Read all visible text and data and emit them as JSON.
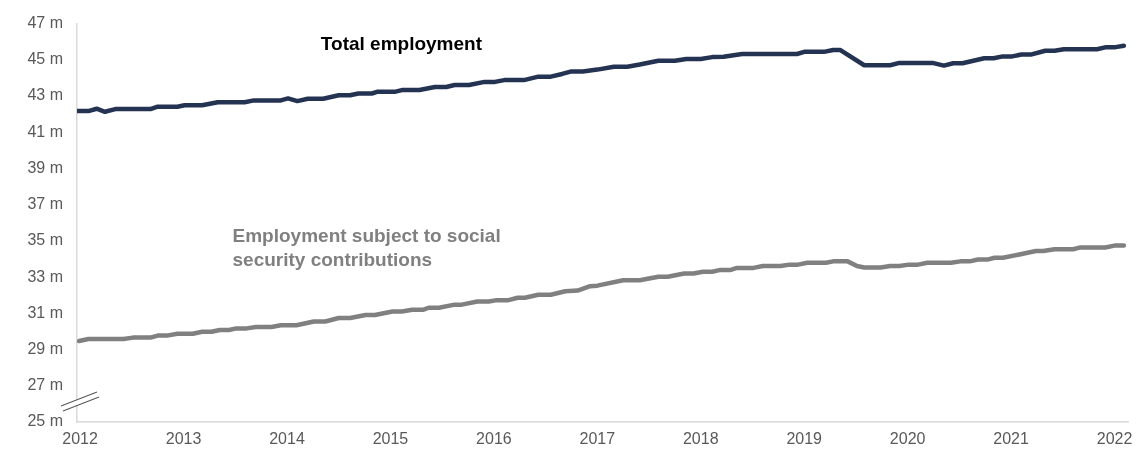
{
  "chart_data": {
    "type": "line",
    "legend": false,
    "grid": false,
    "marker": "none",
    "line_style": "solid",
    "xlim": [
      2011.97,
      2022.13
    ],
    "xticks": [
      2012,
      2013,
      2014,
      2015,
      2016,
      2017,
      2018,
      2019,
      2020,
      2021,
      2022
    ],
    "ylim": [
      25,
      47
    ],
    "yticks": [
      {
        "value": 25,
        "label": "25 m"
      },
      {
        "value": 27,
        "label": "27 m"
      },
      {
        "value": 29,
        "label": "29 m"
      },
      {
        "value": 31,
        "label": "31 m"
      },
      {
        "value": 33,
        "label": "33 m"
      },
      {
        "value": 35,
        "label": "35 m"
      },
      {
        "value": 37,
        "label": "37 m"
      },
      {
        "value": 39,
        "label": "39 m"
      },
      {
        "value": 41,
        "label": "41 m"
      },
      {
        "value": 43,
        "label": "43 m"
      },
      {
        "value": 45,
        "label": "45 m"
      },
      {
        "value": 47,
        "label": "47 m"
      }
    ],
    "series": [
      {
        "name": "Total employment",
        "color": "#253353",
        "x": [
          2011.97,
          2012.08,
          2012.16,
          2012.24,
          2012.34,
          2012.68,
          2012.75,
          2012.94,
          2013.01,
          2013.18,
          2013.33,
          2013.59,
          2013.68,
          2013.94,
          2014.01,
          2014.1,
          2014.2,
          2014.35,
          2014.5,
          2014.61,
          2014.69,
          2014.82,
          2014.87,
          2015.04,
          2015.11,
          2015.28,
          2015.43,
          2015.54,
          2015.62,
          2015.76,
          2015.91,
          2016.01,
          2016.1,
          2016.29,
          2016.43,
          2016.55,
          2016.66,
          2016.75,
          2016.86,
          2017,
          2017.16,
          2017.29,
          2017.41,
          2017.59,
          2017.75,
          2017.86,
          2018,
          2018.11,
          2018.22,
          2018.4,
          2018.5,
          2018.93,
          2019,
          2019.19,
          2019.28,
          2019.35,
          2019.58,
          2019.83,
          2019.92,
          2020.24,
          2020.35,
          2020.44,
          2020.53,
          2020.74,
          2020.83,
          2020.92,
          2021.01,
          2021.1,
          2021.19,
          2021.33,
          2021.42,
          2021.51,
          2021.83,
          2021.92,
          2022.01,
          2022.09
        ],
        "values": [
          42.17,
          42.17,
          42.3,
          42.13,
          42.28,
          42.28,
          42.41,
          42.41,
          42.49,
          42.49,
          42.66,
          42.66,
          42.76,
          42.76,
          42.87,
          42.72,
          42.85,
          42.85,
          43.04,
          43.04,
          43.14,
          43.14,
          43.23,
          43.23,
          43.33,
          43.33,
          43.5,
          43.5,
          43.61,
          43.61,
          43.78,
          43.78,
          43.88,
          43.88,
          44.07,
          44.07,
          44.22,
          44.36,
          44.36,
          44.46,
          44.62,
          44.62,
          44.74,
          44.95,
          44.95,
          45.05,
          45.05,
          45.15,
          45.17,
          45.32,
          45.32,
          45.32,
          45.44,
          45.44,
          45.54,
          45.54,
          44.7,
          44.7,
          44.83,
          44.83,
          44.68,
          44.81,
          44.81,
          45.09,
          45.09,
          45.19,
          45.19,
          45.29,
          45.29,
          45.5,
          45.5,
          45.58,
          45.58,
          45.7,
          45.7,
          45.78
        ]
      },
      {
        "name": "Employment subject to social security contributions",
        "color": "#808080",
        "x": [
          2011.99,
          2012.08,
          2012.42,
          2012.51,
          2012.68,
          2012.75,
          2012.84,
          2012.94,
          2013.09,
          2013.18,
          2013.27,
          2013.35,
          2013.44,
          2013.51,
          2013.61,
          2013.7,
          2013.85,
          2013.94,
          2014.09,
          2014.26,
          2014.37,
          2014.5,
          2014.61,
          2014.76,
          2014.85,
          2015.02,
          2015.11,
          2015.21,
          2015.32,
          2015.37,
          2015.47,
          2015.62,
          2015.69,
          2015.84,
          2015.95,
          2016.03,
          2016.14,
          2016.23,
          2016.3,
          2016.43,
          2016.55,
          2016.69,
          2016.81,
          2016.93,
          2017,
          2017.25,
          2017.41,
          2017.59,
          2017.68,
          2017.84,
          2017.93,
          2018.02,
          2018.11,
          2018.19,
          2018.29,
          2018.35,
          2018.51,
          2018.6,
          2018.77,
          2018.86,
          2018.94,
          2019.03,
          2019.21,
          2019.28,
          2019.42,
          2019.51,
          2019.58,
          2019.74,
          2019.83,
          2019.92,
          2020.01,
          2020.1,
          2020.19,
          2020.42,
          2020.51,
          2020.6,
          2020.68,
          2020.77,
          2020.84,
          2020.92,
          2021.08,
          2021.24,
          2021.31,
          2021.42,
          2021.6,
          2021.67,
          2021.91,
          2022,
          2022.09
        ],
        "values": [
          29.47,
          29.58,
          29.58,
          29.66,
          29.66,
          29.77,
          29.77,
          29.87,
          29.87,
          29.98,
          29.98,
          30.08,
          30.08,
          30.17,
          30.17,
          30.25,
          30.25,
          30.34,
          30.34,
          30.55,
          30.55,
          30.74,
          30.74,
          30.91,
          30.91,
          31.1,
          31.1,
          31.2,
          31.2,
          31.31,
          31.31,
          31.48,
          31.48,
          31.65,
          31.65,
          31.73,
          31.73,
          31.86,
          31.86,
          32.03,
          32.03,
          32.22,
          32.26,
          32.5,
          32.53,
          32.83,
          32.83,
          33.02,
          33.02,
          33.2,
          33.2,
          33.3,
          33.3,
          33.4,
          33.4,
          33.51,
          33.51,
          33.61,
          33.61,
          33.69,
          33.69,
          33.79,
          33.79,
          33.87,
          33.87,
          33.61,
          33.53,
          33.53,
          33.61,
          33.61,
          33.69,
          33.69,
          33.79,
          33.79,
          33.87,
          33.87,
          33.97,
          33.97,
          34.07,
          34.07,
          34.25,
          34.44,
          34.44,
          34.54,
          34.54,
          34.64,
          34.64,
          34.74,
          34.74
        ]
      }
    ]
  }
}
